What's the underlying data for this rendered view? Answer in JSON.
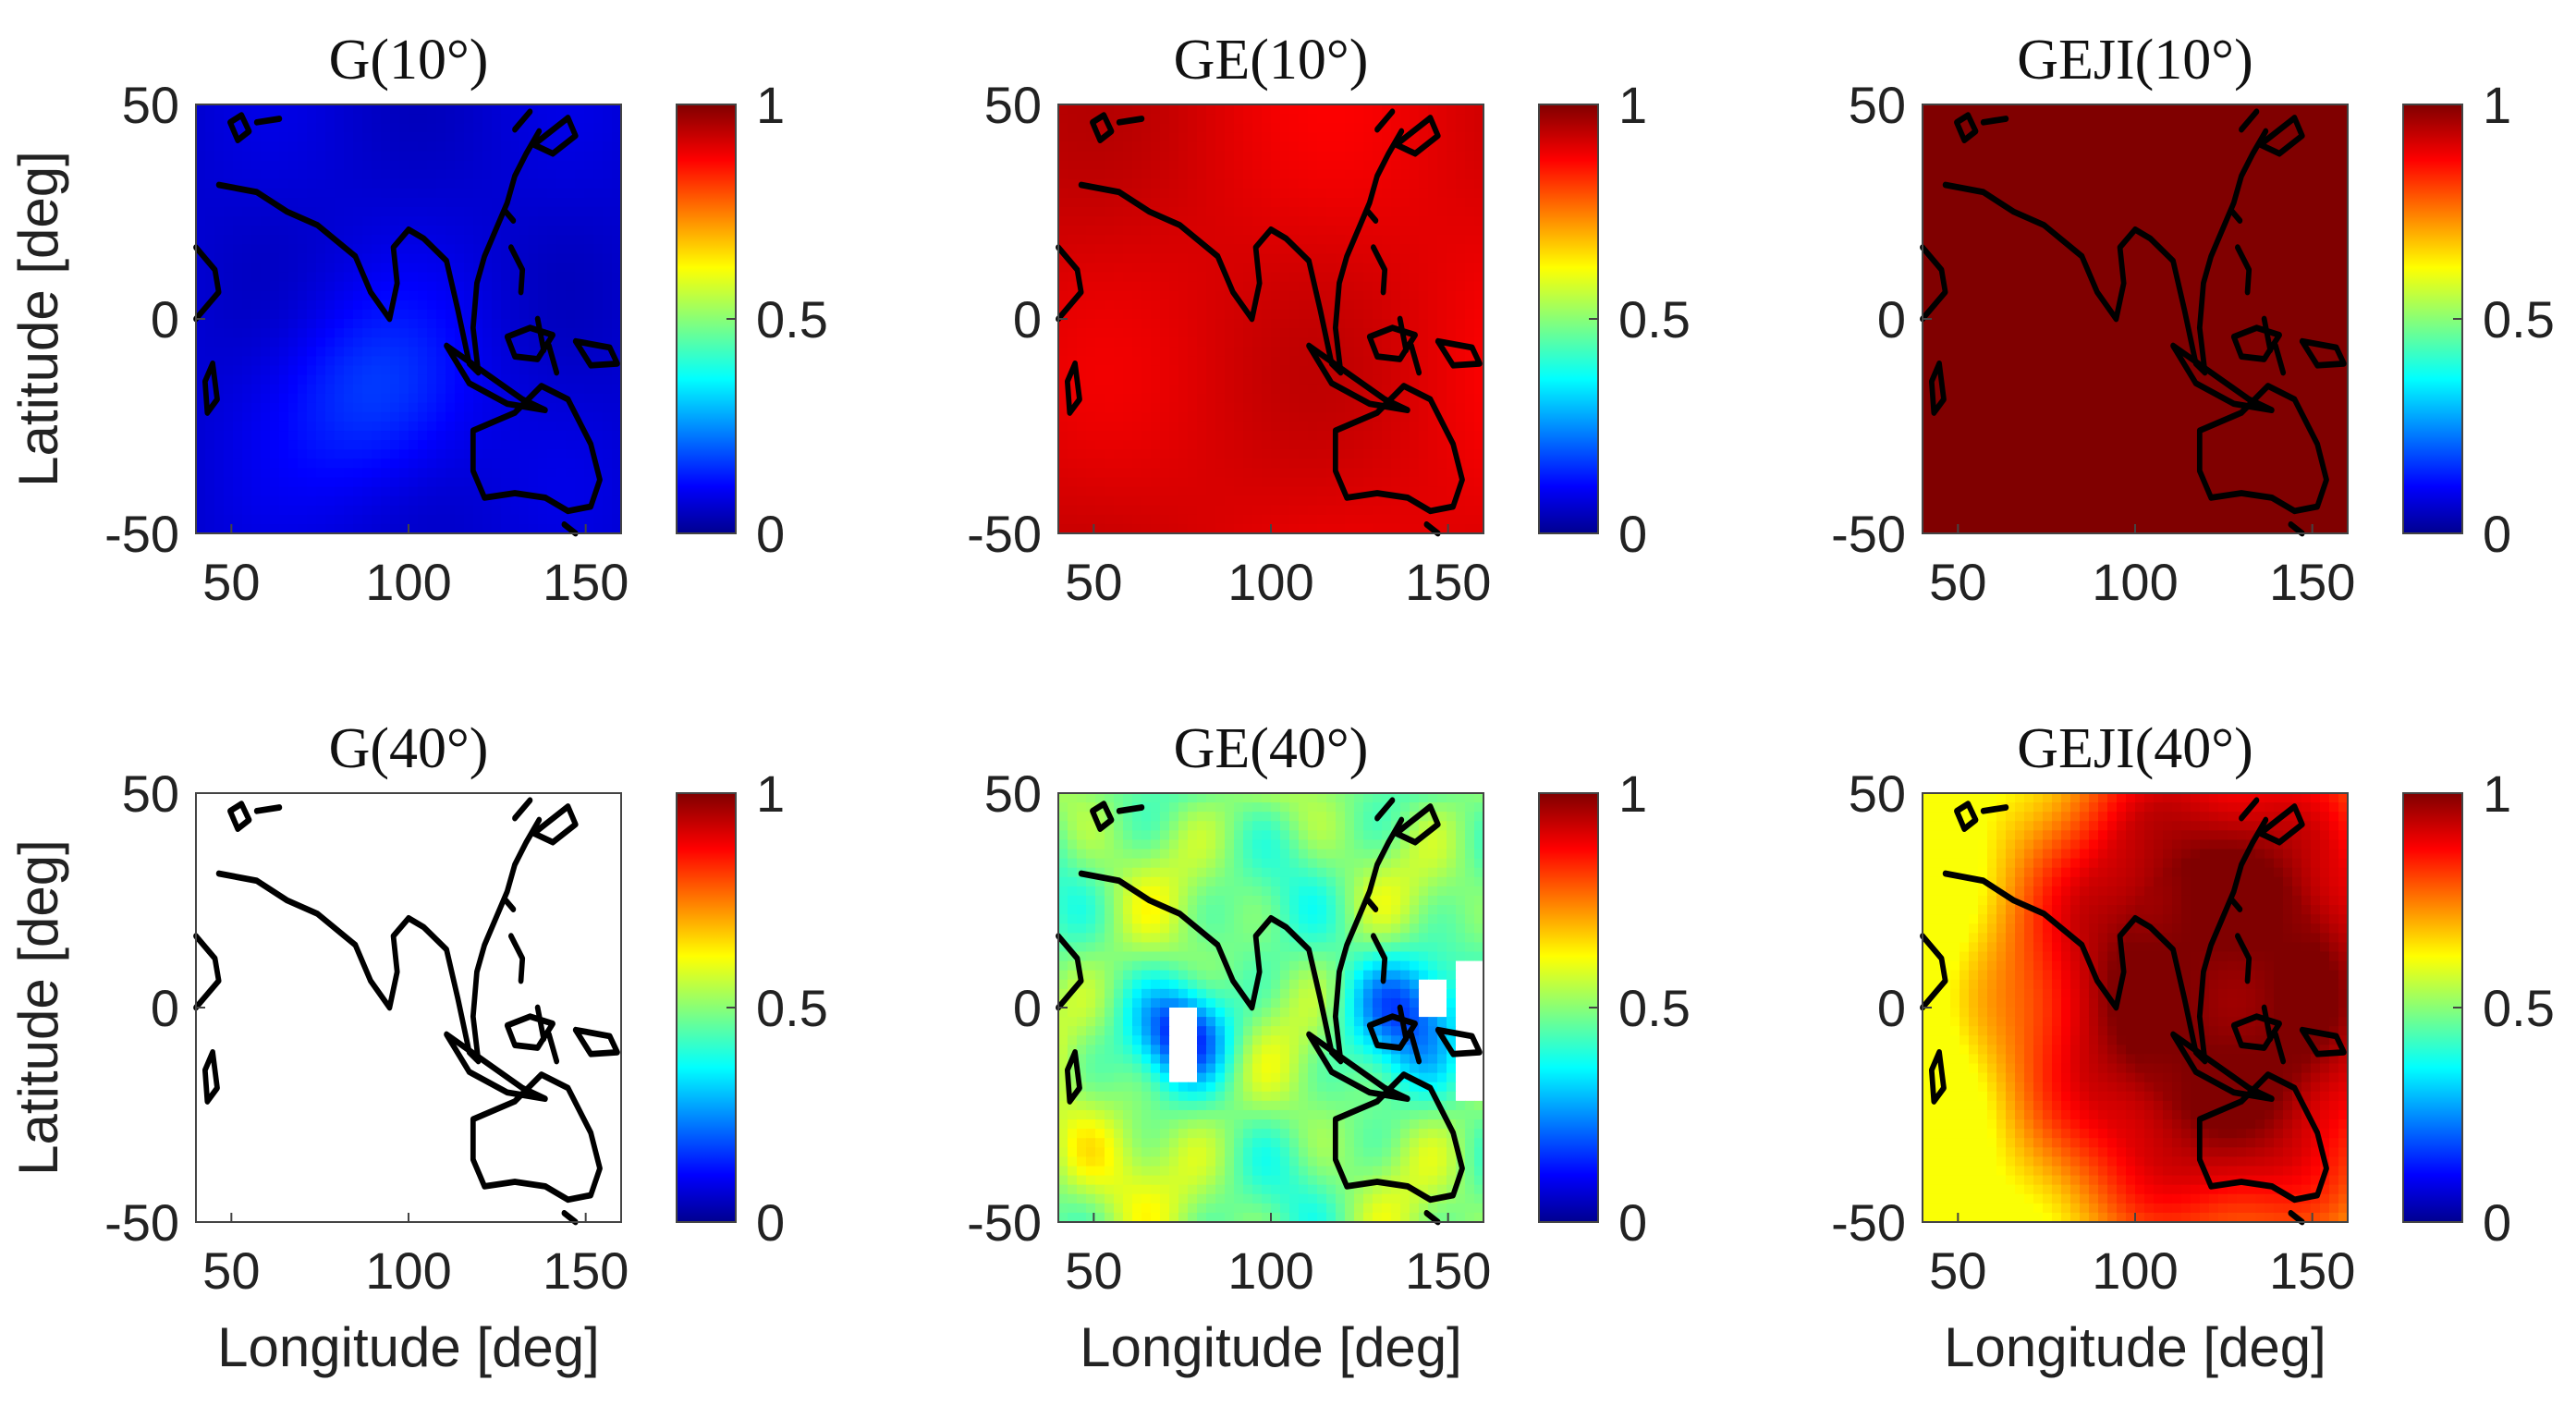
{
  "chart_data": [
    {
      "type": "heatmap",
      "title": "G(10°)",
      "colormap": "jet",
      "mode": "low",
      "xlabel": "",
      "ylabel": "Latitude [deg]",
      "xlim": [
        40,
        160
      ],
      "ylim": [
        -50,
        50
      ],
      "xticks": [
        "50",
        "100",
        "150"
      ],
      "yticks": [
        "50",
        "0",
        "-50"
      ],
      "colorbar": {
        "min": 0,
        "max": 1,
        "ticks": [
          "1",
          "0.5",
          "0"
        ]
      },
      "typical_value": 0.1,
      "value_range": [
        0.05,
        0.2
      ]
    },
    {
      "type": "heatmap",
      "title": "GE(10°)",
      "colormap": "jet",
      "mode": "high",
      "xlabel": "",
      "ylabel": "",
      "xlim": [
        40,
        160
      ],
      "ylim": [
        -50,
        50
      ],
      "xticks": [
        "50",
        "100",
        "150"
      ],
      "yticks": [
        "50",
        "0",
        "-50"
      ],
      "colorbar": {
        "min": 0,
        "max": 1,
        "ticks": [
          "1",
          "0.5",
          "0"
        ]
      },
      "typical_value": 0.92,
      "value_range": [
        0.9,
        0.96
      ]
    },
    {
      "type": "heatmap",
      "title": "GEJI(10°)",
      "colormap": "jet",
      "mode": "full",
      "xlabel": "",
      "ylabel": "",
      "xlim": [
        40,
        160
      ],
      "ylim": [
        -50,
        50
      ],
      "xticks": [
        "50",
        "100",
        "150"
      ],
      "yticks": [
        "50",
        "0",
        "-50"
      ],
      "colorbar": {
        "min": 0,
        "max": 1,
        "ticks": [
          "1",
          "0.5",
          "0"
        ]
      },
      "typical_value": 1.0,
      "value_range": [
        1.0,
        1.0
      ]
    },
    {
      "type": "heatmap",
      "title": "G(40°)",
      "colormap": "jet",
      "mode": "blank",
      "xlabel": "Longitude [deg]",
      "ylabel": "Latitude [deg]",
      "xlim": [
        40,
        160
      ],
      "ylim": [
        -50,
        50
      ],
      "xticks": [
        "50",
        "100",
        "150"
      ],
      "yticks": [
        "50",
        "0",
        "-50"
      ],
      "colorbar": {
        "min": 0,
        "max": 1,
        "ticks": [
          "1",
          "0.5",
          "0"
        ]
      },
      "typical_value": null,
      "value_range": null
    },
    {
      "type": "heatmap",
      "title": "GE(40°)",
      "colormap": "jet",
      "mode": "mid",
      "xlabel": "Longitude [deg]",
      "ylabel": "",
      "xlim": [
        40,
        160
      ],
      "ylim": [
        -50,
        50
      ],
      "xticks": [
        "50",
        "100",
        "150"
      ],
      "yticks": [
        "50",
        "0",
        "-50"
      ],
      "colorbar": {
        "min": 0,
        "max": 1,
        "ticks": [
          "1",
          "0.5",
          "0"
        ]
      },
      "typical_value": 0.45,
      "value_range": [
        0.15,
        0.65
      ]
    },
    {
      "type": "heatmap",
      "title": "GEJI(40°)",
      "colormap": "jet",
      "mode": "ring",
      "xlabel": "Longitude [deg]",
      "ylabel": "",
      "xlim": [
        40,
        160
      ],
      "ylim": [
        -50,
        50
      ],
      "xticks": [
        "50",
        "100",
        "150"
      ],
      "yticks": [
        "50",
        "0",
        "-50"
      ],
      "colorbar": {
        "min": 0,
        "max": 1,
        "ticks": [
          "1",
          "0.5",
          "0"
        ]
      },
      "typical_value": 0.9,
      "value_range": [
        0.7,
        1.0
      ]
    }
  ]
}
